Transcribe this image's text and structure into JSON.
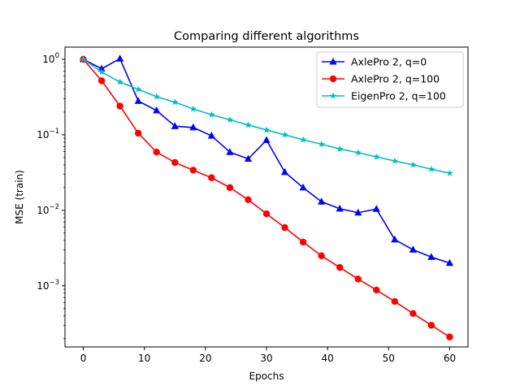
{
  "chart_data": {
    "type": "line",
    "title": "Comparing different algorithms",
    "xlabel": "Epochs",
    "ylabel": "MSE (train)",
    "yscale": "log",
    "xlim": [
      -3,
      63
    ],
    "ylim": [
      0.000155,
      1.45
    ],
    "xticks": [
      0,
      10,
      20,
      30,
      40,
      50,
      60
    ],
    "xtick_labels": [
      "0",
      "10",
      "20",
      "30",
      "40",
      "50",
      "60"
    ],
    "yticks": [
      0.001,
      0.01,
      0.1,
      1
    ],
    "ytick_labels": [
      {
        "base": "10",
        "exp": "−3"
      },
      {
        "base": "10",
        "exp": "−2"
      },
      {
        "base": "10",
        "exp": "−1"
      },
      {
        "base": "10",
        "exp": "0"
      }
    ],
    "grid": false,
    "legend_position": "top-right",
    "x": [
      0,
      3,
      6,
      9,
      12,
      15,
      18,
      21,
      24,
      27,
      30,
      33,
      36,
      39,
      42,
      45,
      48,
      51,
      54,
      57,
      60
    ],
    "series": [
      {
        "name": "AxlePro 2, q=0",
        "color": "#0000ff",
        "marker": "triangle",
        "values": [
          1.0,
          0.75,
          1.02,
          0.28,
          0.21,
          0.13,
          0.125,
          0.097,
          0.059,
          0.048,
          0.085,
          0.032,
          0.02,
          0.013,
          0.0105,
          0.0093,
          0.0104,
          0.0041,
          0.003,
          0.0024,
          0.002
        ]
      },
      {
        "name": "AxlePro 2, q=100",
        "color": "#ff0000",
        "marker": "circle",
        "values": [
          1.0,
          0.52,
          0.24,
          0.105,
          0.059,
          0.043,
          0.034,
          0.027,
          0.02,
          0.0138,
          0.009,
          0.0059,
          0.0038,
          0.0025,
          0.00175,
          0.00123,
          0.00088,
          0.00062,
          0.00043,
          0.0003,
          0.00021
        ]
      },
      {
        "name": "EigenPro 2, q=100",
        "color": "#00bfbf",
        "marker": "star",
        "values": [
          1.0,
          0.68,
          0.5,
          0.4,
          0.32,
          0.27,
          0.22,
          0.185,
          0.158,
          0.135,
          0.116,
          0.1,
          0.086,
          0.075,
          0.065,
          0.058,
          0.051,
          0.045,
          0.04,
          0.035,
          0.031
        ]
      }
    ]
  }
}
